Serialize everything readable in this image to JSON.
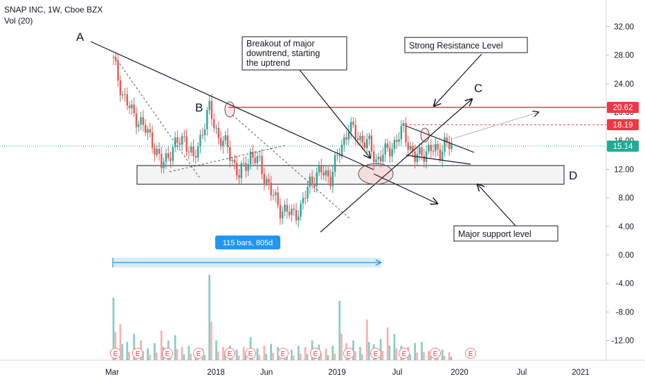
{
  "legend": {
    "symbol": "SNAP INC, 1W, Cboe BZX",
    "indicator": "Vol (20)"
  },
  "colors": {
    "up": "#26a69a",
    "down": "#ef5350",
    "resistance": "#f23645",
    "last_price": "#22ab94",
    "measure": "#2196f3",
    "axis_text": "#131722"
  },
  "chart_data": {
    "type": "candlestick",
    "title": "",
    "xlabel": "",
    "ylabel": "",
    "ylim": [
      -15.5,
      35.5
    ],
    "y_ticks": [
      "32.00",
      "28.00",
      "24.00",
      "20.00",
      "16.00",
      "12.00",
      "8.00",
      "4.00",
      "0.00",
      "-4.00",
      "-8.00",
      "-12.00"
    ],
    "y_tick_values": [
      32,
      28,
      24,
      20,
      16,
      12,
      8,
      4,
      0,
      -4,
      -8,
      -12
    ],
    "x_ticks": [
      "Mar",
      "2018",
      "Jun",
      "2019",
      "Jul",
      "2020",
      "Jul",
      "2021"
    ],
    "price_labels": [
      {
        "text": "20.62",
        "value": 20.62,
        "style": "resistance"
      },
      {
        "text": "18.19",
        "value": 18.19,
        "style": "resistance"
      },
      {
        "text": "15.14",
        "value": 15.14,
        "style": "last"
      }
    ],
    "price_series": {
      "weeks": [
        0,
        4,
        8,
        12,
        17,
        21,
        26,
        31,
        35,
        39,
        42,
        46,
        50,
        55,
        60,
        64,
        69,
        73,
        78,
        82,
        86,
        91,
        95,
        99,
        103,
        108,
        112,
        115,
        119,
        123,
        127,
        130,
        132,
        135,
        139,
        143,
        145,
        148
      ],
      "close": [
        27.1,
        22.5,
        20.0,
        18.5,
        16.0,
        12.5,
        15.0,
        16.5,
        13.2,
        17.5,
        20.4,
        16.5,
        15.0,
        11.0,
        14.0,
        12.8,
        8.8,
        6.5,
        5.7,
        6.4,
        10.3,
        11.7,
        10.9,
        14.5,
        17.9,
        16.3,
        15.4,
        13.3,
        14.3,
        15.6,
        17.6,
        14.8,
        13.5,
        14.3,
        14.7,
        14.6,
        15.5,
        15.14
      ]
    },
    "volume_series": {
      "weeks": [
        0,
        3,
        6,
        9,
        12,
        15,
        18,
        21,
        24,
        27,
        30,
        33,
        36,
        39,
        42,
        45,
        48,
        51,
        54,
        57,
        60,
        63,
        66,
        69,
        72,
        75,
        78,
        81,
        84,
        87,
        90,
        93,
        96,
        99,
        102,
        105,
        108,
        111,
        114,
        117,
        120,
        123,
        126,
        129,
        132,
        135,
        138,
        141,
        144,
        147
      ],
      "volume": [
        95,
        55,
        28,
        40,
        30,
        18,
        26,
        45,
        30,
        38,
        20,
        22,
        16,
        18,
        130,
        30,
        20,
        22,
        16,
        20,
        35,
        18,
        22,
        25,
        20,
        18,
        16,
        22,
        20,
        30,
        24,
        18,
        22,
        90,
        26,
        30,
        20,
        62,
        24,
        32,
        50,
        40,
        22,
        20,
        26,
        28,
        14,
        18,
        16,
        12
      ]
    },
    "measure_label": "115 bars, 805d",
    "annotations": [
      {
        "id": "a",
        "text": "A"
      },
      {
        "id": "b",
        "text": "B"
      },
      {
        "id": "c",
        "text": "C"
      },
      {
        "id": "d",
        "text": "D"
      },
      {
        "id": "breakout",
        "lines": [
          "Breakout of major",
          "downtrend, starting",
          "the uptrend"
        ]
      },
      {
        "id": "resistance",
        "lines": [
          "Strong Resistance Level"
        ]
      },
      {
        "id": "support",
        "lines": [
          "Major support level"
        ]
      }
    ],
    "earnings_marker": "E"
  }
}
